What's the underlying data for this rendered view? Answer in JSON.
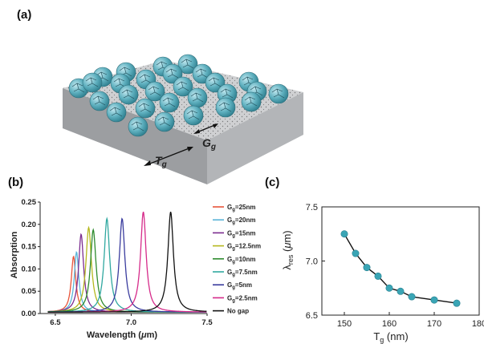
{
  "panels": {
    "a": "(a)",
    "b": "(b)",
    "c": "(c)"
  },
  "figure_a": {
    "labels": {
      "gap": "G",
      "gap_sub": "g",
      "thickness": "T",
      "thickness_sub": "g"
    },
    "colors": {
      "sphere": "#5fb0bf",
      "slab_top": "#cfd0d2",
      "slab_front": "#9c9ea1",
      "slab_side": "#b3b5b8"
    }
  },
  "chart_data": [
    {
      "type": "line",
      "xlabel_prefix": "Wavelength (",
      "xlabel_mu": "μ",
      "xlabel_suffix": "m)",
      "ylabel": "Absorption",
      "xlim": [
        6.4,
        7.5
      ],
      "ylim": [
        0,
        0.25
      ],
      "xticks": [
        "6.5",
        "7.0",
        "7.5"
      ],
      "xtick_values": [
        6.5,
        7.0,
        7.5
      ],
      "yticks": [
        "0.00",
        "0.05",
        "0.10",
        "0.15",
        "0.20",
        "0.25"
      ],
      "ytick_values": [
        0,
        0.05,
        0.1,
        0.15,
        0.2,
        0.25
      ],
      "legend_position": "right",
      "series": [
        {
          "name": "Gg=25nm",
          "g": "G",
          "sub": "g",
          "val": "=25nm",
          "color": "#e8553a",
          "peak_x": 6.62,
          "peak_y": 0.125,
          "width": 0.018
        },
        {
          "name": "Gg=20nm",
          "g": "G",
          "sub": "g",
          "val": "=20nm",
          "color": "#5ab4d8",
          "peak_x": 6.64,
          "peak_y": 0.135,
          "width": 0.018
        },
        {
          "name": "Gg=15nm",
          "g": "G",
          "sub": "g",
          "val": "=15nm",
          "color": "#7b2c8f",
          "peak_x": 6.67,
          "peak_y": 0.175,
          "width": 0.02
        },
        {
          "name": "Gg=12.5nm",
          "g": "G",
          "sub": "g",
          "val": "=12.5nm",
          "color": "#b5b81e",
          "peak_x": 6.72,
          "peak_y": 0.19,
          "width": 0.022
        },
        {
          "name": "Gg=10nm",
          "g": "G",
          "sub": "g",
          "val": "=10nm",
          "color": "#2e8b2e",
          "peak_x": 6.75,
          "peak_y": 0.185,
          "width": 0.022
        },
        {
          "name": "Gg=7.5nm",
          "g": "G",
          "sub": "g",
          "val": "=7.5nm",
          "color": "#30a8a0",
          "peak_x": 6.84,
          "peak_y": 0.21,
          "width": 0.022
        },
        {
          "name": "Gg=5nm",
          "g": "G",
          "sub": "g",
          "val": "=5nm",
          "color": "#3a3c9e",
          "peak_x": 6.94,
          "peak_y": 0.21,
          "width": 0.022
        },
        {
          "name": "Gg=2.5nm",
          "g": "G",
          "sub": "g",
          "val": "=2.5nm",
          "color": "#d62b8a",
          "peak_x": 7.08,
          "peak_y": 0.225,
          "width": 0.022
        },
        {
          "name": "No gap",
          "g": "No gap",
          "sub": "",
          "val": "",
          "color": "#111111",
          "peak_x": 7.26,
          "peak_y": 0.225,
          "width": 0.022
        }
      ]
    },
    {
      "type": "line",
      "xlabel": "T",
      "xlabel_sub": "g",
      "xlabel_suffix": " (nm)",
      "ylabel": "λ",
      "ylabel_sub": "res",
      "ylabel_mid": " (",
      "ylabel_mu": "μ",
      "ylabel_end": "m)",
      "xlim": [
        145,
        180
      ],
      "ylim": [
        6.5,
        7.5
      ],
      "xticks": [
        "150",
        "160",
        "170",
        "180"
      ],
      "xtick_values": [
        150,
        160,
        170,
        180
      ],
      "yticks": [
        "6.5",
        "7.0",
        "7.5"
      ],
      "ytick_values": [
        6.5,
        7.0,
        7.5
      ],
      "marker_color": "#3aa5b5",
      "x": [
        150,
        152.5,
        155,
        157.5,
        160,
        162.5,
        165,
        170,
        175
      ],
      "y": [
        7.25,
        7.07,
        6.94,
        6.86,
        6.75,
        6.72,
        6.67,
        6.64,
        6.61
      ]
    }
  ]
}
